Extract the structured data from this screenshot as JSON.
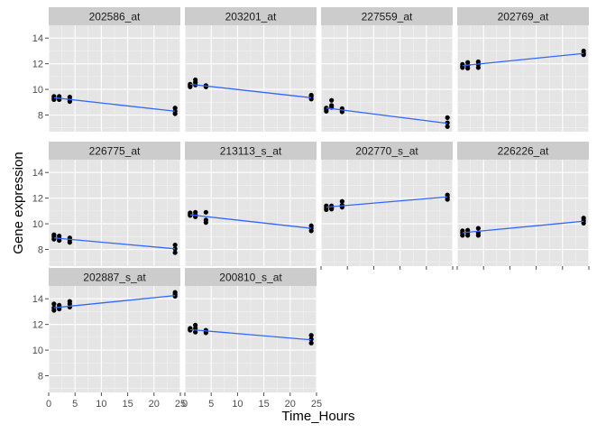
{
  "chart_data": {
    "type": "scatter",
    "xlabel": "Time_Hours",
    "ylabel": "Gene expression",
    "xlim": [
      0,
      25
    ],
    "ylim": [
      6.7,
      15
    ],
    "x_ticks": [
      0,
      5,
      10,
      15,
      20,
      25
    ],
    "y_ticks": [
      8,
      10,
      12,
      14
    ],
    "grid": true,
    "panels": [
      {
        "name": "202586_at",
        "fit": {
          "x": [
            1,
            24
          ],
          "y": [
            9.35,
            8.3
          ]
        },
        "points": [
          {
            "x": 1,
            "y": 9.45
          },
          {
            "x": 1,
            "y": 9.3
          },
          {
            "x": 1,
            "y": 9.2
          },
          {
            "x": 2,
            "y": 9.45
          },
          {
            "x": 2,
            "y": 9.3
          },
          {
            "x": 2,
            "y": 9.2
          },
          {
            "x": 4,
            "y": 9.4
          },
          {
            "x": 4,
            "y": 9.2
          },
          {
            "x": 4,
            "y": 9.05
          },
          {
            "x": 24,
            "y": 8.55
          },
          {
            "x": 24,
            "y": 8.3
          },
          {
            "x": 24,
            "y": 8.1
          }
        ]
      },
      {
        "name": "203201_at",
        "fit": {
          "x": [
            1,
            24
          ],
          "y": [
            10.4,
            9.35
          ]
        },
        "points": [
          {
            "x": 1,
            "y": 10.4
          },
          {
            "x": 1,
            "y": 10.3
          },
          {
            "x": 1,
            "y": 10.2
          },
          {
            "x": 2,
            "y": 10.75
          },
          {
            "x": 2,
            "y": 10.55
          },
          {
            "x": 2,
            "y": 10.35
          },
          {
            "x": 4,
            "y": 10.3
          },
          {
            "x": 4,
            "y": 10.25
          },
          {
            "x": 4,
            "y": 10.2
          },
          {
            "x": 24,
            "y": 9.55
          },
          {
            "x": 24,
            "y": 9.45
          },
          {
            "x": 24,
            "y": 9.25
          }
        ]
      },
      {
        "name": "227559_at",
        "fit": {
          "x": [
            1,
            24
          ],
          "y": [
            8.55,
            7.35
          ]
        },
        "points": [
          {
            "x": 1,
            "y": 8.55
          },
          {
            "x": 1,
            "y": 8.45
          },
          {
            "x": 1,
            "y": 8.3
          },
          {
            "x": 2,
            "y": 9.15
          },
          {
            "x": 2,
            "y": 8.75
          },
          {
            "x": 2,
            "y": 8.6
          },
          {
            "x": 4,
            "y": 8.5
          },
          {
            "x": 4,
            "y": 8.35
          },
          {
            "x": 4,
            "y": 8.25
          },
          {
            "x": 24,
            "y": 7.8
          },
          {
            "x": 24,
            "y": 7.4
          },
          {
            "x": 24,
            "y": 7.1
          }
        ]
      },
      {
        "name": "202769_at",
        "fit": {
          "x": [
            1,
            24
          ],
          "y": [
            11.85,
            12.8
          ]
        },
        "points": [
          {
            "x": 1,
            "y": 11.95
          },
          {
            "x": 1,
            "y": 11.8
          },
          {
            "x": 1,
            "y": 11.7
          },
          {
            "x": 2,
            "y": 12.1
          },
          {
            "x": 2,
            "y": 11.85
          },
          {
            "x": 2,
            "y": 11.65
          },
          {
            "x": 4,
            "y": 12.15
          },
          {
            "x": 4,
            "y": 11.95
          },
          {
            "x": 4,
            "y": 11.7
          },
          {
            "x": 24,
            "y": 13.0
          },
          {
            "x": 24,
            "y": 12.8
          },
          {
            "x": 24,
            "y": 12.7
          }
        ]
      },
      {
        "name": "226775_at",
        "fit": {
          "x": [
            1,
            24
          ],
          "y": [
            8.9,
            8.05
          ]
        },
        "points": [
          {
            "x": 1,
            "y": 9.15
          },
          {
            "x": 1,
            "y": 9.0
          },
          {
            "x": 1,
            "y": 8.8
          },
          {
            "x": 2,
            "y": 9.05
          },
          {
            "x": 2,
            "y": 8.85
          },
          {
            "x": 2,
            "y": 8.7
          },
          {
            "x": 4,
            "y": 8.9
          },
          {
            "x": 4,
            "y": 8.75
          },
          {
            "x": 4,
            "y": 8.55
          },
          {
            "x": 24,
            "y": 8.35
          },
          {
            "x": 24,
            "y": 8.05
          },
          {
            "x": 24,
            "y": 7.75
          }
        ]
      },
      {
        "name": "213113_s_at",
        "fit": {
          "x": [
            1,
            24
          ],
          "y": [
            10.7,
            9.65
          ]
        },
        "points": [
          {
            "x": 1,
            "y": 10.85
          },
          {
            "x": 1,
            "y": 10.75
          },
          {
            "x": 1,
            "y": 10.65
          },
          {
            "x": 2,
            "y": 10.9
          },
          {
            "x": 2,
            "y": 10.7
          },
          {
            "x": 2,
            "y": 10.55
          },
          {
            "x": 4,
            "y": 10.9
          },
          {
            "x": 4,
            "y": 10.3
          },
          {
            "x": 4,
            "y": 10.1
          },
          {
            "x": 24,
            "y": 9.85
          },
          {
            "x": 24,
            "y": 9.65
          },
          {
            "x": 24,
            "y": 9.45
          }
        ]
      },
      {
        "name": "202770_s_at",
        "fit": {
          "x": [
            1,
            24
          ],
          "y": [
            11.3,
            12.1
          ]
        },
        "points": [
          {
            "x": 1,
            "y": 11.4
          },
          {
            "x": 1,
            "y": 11.25
          },
          {
            "x": 1,
            "y": 11.1
          },
          {
            "x": 2,
            "y": 11.4
          },
          {
            "x": 2,
            "y": 11.25
          },
          {
            "x": 2,
            "y": 11.15
          },
          {
            "x": 4,
            "y": 11.75
          },
          {
            "x": 4,
            "y": 11.45
          },
          {
            "x": 4,
            "y": 11.3
          },
          {
            "x": 24,
            "y": 12.25
          },
          {
            "x": 24,
            "y": 12.05
          },
          {
            "x": 24,
            "y": 11.9
          }
        ]
      },
      {
        "name": "226226_at",
        "fit": {
          "x": [
            1,
            24
          ],
          "y": [
            9.3,
            10.2
          ]
        },
        "points": [
          {
            "x": 1,
            "y": 9.45
          },
          {
            "x": 1,
            "y": 9.3
          },
          {
            "x": 1,
            "y": 9.1
          },
          {
            "x": 2,
            "y": 9.5
          },
          {
            "x": 2,
            "y": 9.3
          },
          {
            "x": 2,
            "y": 9.1
          },
          {
            "x": 4,
            "y": 9.65
          },
          {
            "x": 4,
            "y": 9.3
          },
          {
            "x": 4,
            "y": 9.1
          },
          {
            "x": 24,
            "y": 10.45
          },
          {
            "x": 24,
            "y": 10.25
          },
          {
            "x": 24,
            "y": 10.05
          }
        ]
      },
      {
        "name": "202887_s_at",
        "fit": {
          "x": [
            1,
            24
          ],
          "y": [
            13.3,
            14.25
          ]
        },
        "points": [
          {
            "x": 1,
            "y": 13.6
          },
          {
            "x": 1,
            "y": 13.3
          },
          {
            "x": 1,
            "y": 13.1
          },
          {
            "x": 2,
            "y": 13.5
          },
          {
            "x": 2,
            "y": 13.35
          },
          {
            "x": 2,
            "y": 13.2
          },
          {
            "x": 4,
            "y": 13.8
          },
          {
            "x": 4,
            "y": 13.6
          },
          {
            "x": 4,
            "y": 13.35
          },
          {
            "x": 24,
            "y": 14.5
          },
          {
            "x": 24,
            "y": 14.35
          },
          {
            "x": 24,
            "y": 14.2
          }
        ]
      },
      {
        "name": "200810_s_at",
        "fit": {
          "x": [
            1,
            24
          ],
          "y": [
            11.6,
            10.8
          ]
        },
        "points": [
          {
            "x": 1,
            "y": 11.7
          },
          {
            "x": 1,
            "y": 11.6
          },
          {
            "x": 1,
            "y": 11.55
          },
          {
            "x": 2,
            "y": 11.95
          },
          {
            "x": 2,
            "y": 11.7
          },
          {
            "x": 2,
            "y": 11.4
          },
          {
            "x": 4,
            "y": 11.55
          },
          {
            "x": 4,
            "y": 11.45
          },
          {
            "x": 4,
            "y": 11.35
          },
          {
            "x": 24,
            "y": 11.15
          },
          {
            "x": 24,
            "y": 10.85
          },
          {
            "x": 24,
            "y": 10.55
          }
        ]
      }
    ],
    "colors": {
      "panel_background": "#e5e5e5",
      "grid_major": "#ffffff",
      "grid_minor": "#f2f2f2",
      "strip_background": "#cccccc",
      "point": "#000000",
      "fit_line": "#3366ff"
    }
  }
}
